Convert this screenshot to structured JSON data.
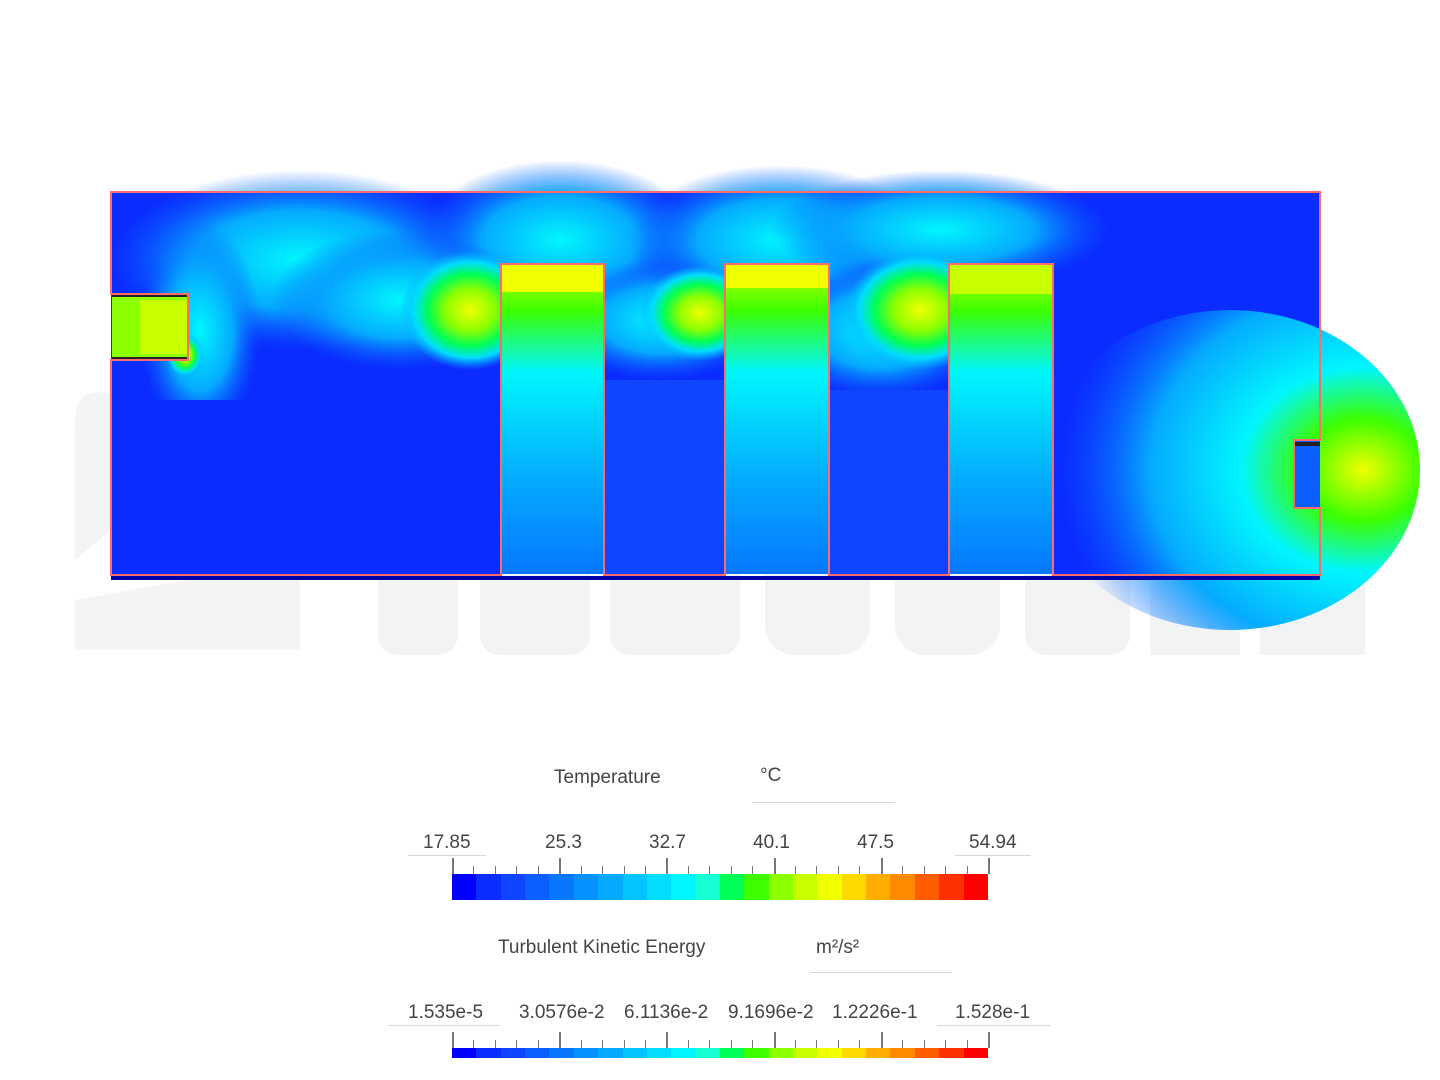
{
  "watermark": {
    "text": "SIMSCALE",
    "color": "#f1f3f5"
  },
  "colors": {
    "outline": "#ff6a6a",
    "scale": [
      "#0000ff",
      "#0a2cff",
      "#0f45ff",
      "#0b5eff",
      "#0777ff",
      "#0591ff",
      "#05aaff",
      "#04c4ff",
      "#00ddff",
      "#00f6ff",
      "#19ffd6",
      "#00ff55",
      "#3cff00",
      "#8cff00",
      "#c8ff00",
      "#f0ff00",
      "#ffd800",
      "#ffae00",
      "#ff8a00",
      "#ff5c00",
      "#ff3000",
      "#ff0000"
    ]
  },
  "legends": [
    {
      "title": "Temperature",
      "unit": "°C",
      "labels": [
        "17.85",
        "25.3",
        "32.7",
        "40.1",
        "47.5",
        "54.94"
      ]
    },
    {
      "title": "Turbulent Kinetic Energy",
      "unit": "m²/s²",
      "labels": [
        "1.535e-5",
        "3.0576e-2",
        "6.1136e-2",
        "9.1696e-2",
        "1.2226e-1",
        "1.528e-1"
      ]
    }
  ]
}
